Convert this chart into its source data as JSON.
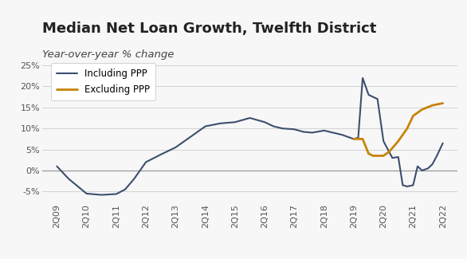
{
  "title": "Median Net Loan Growth, Twelfth District",
  "subtitle": "Year-over-year % change",
  "title_fontsize": 13,
  "subtitle_fontsize": 9.5,
  "background_color": "#f7f7f7",
  "plot_bg_color": "#f7f7f7",
  "line_including_color": "#3d4f6e",
  "line_excluding_color": "#c8830a",
  "legend_labels": [
    "Including PPP",
    "Excluding PPP"
  ],
  "x_labels": [
    "2Q09",
    "2Q10",
    "2Q11",
    "2Q12",
    "2Q13",
    "2Q14",
    "2Q15",
    "2Q16",
    "2Q17",
    "2Q18",
    "2Q19",
    "2Q20",
    "2Q21",
    "2Q22"
  ],
  "including_ppp_detail": {
    "x": [
      0,
      0.4,
      1.0,
      1.5,
      2.0,
      2.3,
      2.6,
      3.0,
      3.5,
      4.0,
      4.5,
      5.0,
      5.5,
      6.0,
      6.5,
      7.0,
      7.3,
      7.6,
      8.0,
      8.3,
      8.6,
      9.0,
      9.3,
      9.6,
      10.0,
      10.15,
      10.3,
      10.5,
      10.65,
      10.8,
      11.0,
      11.15,
      11.3,
      11.5,
      11.65,
      11.8,
      12.0,
      12.15,
      12.3,
      12.5,
      12.65,
      12.8,
      13.0
    ],
    "y": [
      1.0,
      -2.0,
      -5.5,
      -5.8,
      -5.6,
      -4.5,
      -2.0,
      2.0,
      3.8,
      5.5,
      8.0,
      10.5,
      11.2,
      11.5,
      12.5,
      11.5,
      10.5,
      10.0,
      9.8,
      9.2,
      9.0,
      9.5,
      9.0,
      8.5,
      7.5,
      7.8,
      22.0,
      18.0,
      17.5,
      17.0,
      7.0,
      5.0,
      3.0,
      3.2,
      -3.5,
      -3.8,
      -3.5,
      1.0,
      0.0,
      0.5,
      1.5,
      3.5,
      6.5
    ]
  },
  "excluding_ppp_detail": {
    "x": [
      10.0,
      10.15,
      10.3,
      10.5,
      10.65,
      10.8,
      11.0,
      11.2,
      11.5,
      11.8,
      12.0,
      12.3,
      12.65,
      13.0
    ],
    "y": [
      7.5,
      7.5,
      7.5,
      4.0,
      3.5,
      3.5,
      3.5,
      4.5,
      7.0,
      10.0,
      13.0,
      14.5,
      15.5,
      16.0
    ]
  },
  "ylim": [
    -7.5,
    27
  ],
  "yticks": [
    -5,
    0,
    5,
    10,
    15,
    20,
    25
  ],
  "grid_color": "#cccccc"
}
